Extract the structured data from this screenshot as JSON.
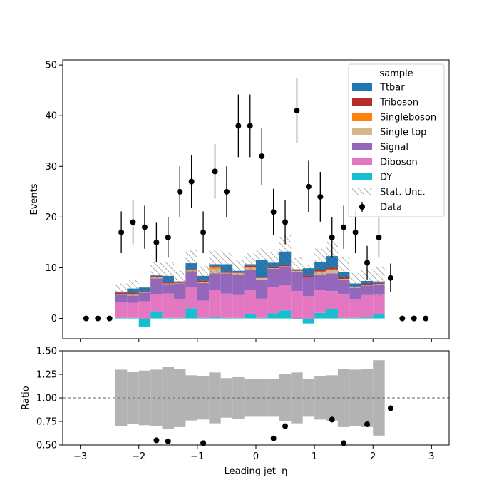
{
  "chart_data": {
    "type": "bar",
    "subtype": "stacked-histogram-with-ratio",
    "xlabel": "Leading jet  η",
    "ylabel": "Events",
    "ratio_ylabel": "Ratio",
    "xlim": [
      -3.3,
      3.3
    ],
    "ylim": [
      -4,
      51
    ],
    "ratio_ylim": [
      0.5,
      1.5
    ],
    "ratio_reference": 1.0,
    "x_ticks": [
      -3,
      -2,
      -1,
      0,
      1,
      2,
      3
    ],
    "y_ticks": [
      0,
      10,
      20,
      30,
      40,
      50
    ],
    "ratio_y_ticks": [
      0.5,
      0.75,
      1.0,
      1.25,
      1.5
    ],
    "ratio_y_tick_labels": [
      "0.50",
      "0.75",
      "1.00",
      "1.25",
      "1.50"
    ],
    "legend": {
      "title": "sample",
      "placement": "top-right",
      "entries": [
        "Ttbar",
        "Triboson",
        "Singleboson",
        "Single top",
        "Signal",
        "Diboson",
        "DY",
        "Stat. Unc.",
        "Data"
      ]
    },
    "bin_edges": [
      -2.4,
      -2.2,
      -2.0,
      -1.8,
      -1.6,
      -1.4,
      -1.2,
      -1.0,
      -0.8,
      -0.6,
      -0.4,
      -0.2,
      0.0,
      0.2,
      0.4,
      0.6,
      0.8,
      1.0,
      1.2,
      1.4,
      1.6,
      1.8,
      2.0,
      2.2
    ],
    "stack_order_bottom_to_top": [
      "DY",
      "Diboson",
      "Signal",
      "Single top",
      "Singleboson",
      "Triboson",
      "Ttbar"
    ],
    "series": [
      {
        "name": "DY",
        "color": "#17becf",
        "values": [
          0.1,
          0.1,
          -1.6,
          1.4,
          0.1,
          0.1,
          2.0,
          0.1,
          0.2,
          0.1,
          0.1,
          0.8,
          0.1,
          1.0,
          1.6,
          -0.2,
          -1.0,
          1.1,
          1.8,
          0.1,
          0.1,
          0.2,
          0.9
        ]
      },
      {
        "name": "Diboson",
        "color": "#e377c2",
        "values": [
          3.2,
          3.0,
          3.4,
          3.4,
          4.8,
          3.7,
          4.2,
          3.4,
          5.5,
          4.8,
          4.5,
          4.8,
          3.8,
          5.2,
          4.9,
          5.4,
          4.4,
          4.5,
          3.6,
          4.6,
          3.7,
          4.4,
          3.9
        ]
      },
      {
        "name": "Signal",
        "color": "#9467bd",
        "values": [
          1.4,
          1.4,
          1.7,
          3.1,
          1.9,
          3.1,
          3.1,
          3.5,
          3.2,
          4.0,
          4.1,
          4.0,
          3.8,
          3.6,
          3.7,
          3.8,
          3.7,
          3.0,
          3.5,
          3.0,
          2.2,
          1.9,
          1.9
        ]
      },
      {
        "name": "Single top",
        "color": "#d6b58b",
        "values": [
          0.1,
          0.1,
          0.1,
          0.2,
          0.1,
          0.1,
          0.1,
          0.2,
          0.9,
          0.1,
          0.3,
          0.4,
          0.3,
          0.1,
          0.1,
          0.2,
          0.1,
          0.6,
          0.6,
          0.1,
          0.1,
          0.1,
          0.1
        ]
      },
      {
        "name": "Singleboson",
        "color": "#ff7f0e",
        "values": [
          0.0,
          0.1,
          0.0,
          0.0,
          0.0,
          0.0,
          0.1,
          0.0,
          0.3,
          0.0,
          0.0,
          0.1,
          0.0,
          0.0,
          0.0,
          0.0,
          0.0,
          0.1,
          0.2,
          0.0,
          0.0,
          0.0,
          0.0
        ]
      },
      {
        "name": "Triboson",
        "color": "#b22d2d",
        "values": [
          0.3,
          0.3,
          0.2,
          0.3,
          0.2,
          0.3,
          0.2,
          0.3,
          0.2,
          0.3,
          0.2,
          0.3,
          0.2,
          0.3,
          0.3,
          0.2,
          0.3,
          0.3,
          0.3,
          0.3,
          0.2,
          0.3,
          0.2
        ]
      },
      {
        "name": "Ttbar",
        "color": "#1f77b4",
        "values": [
          0.2,
          0.9,
          0.7,
          0.1,
          1.3,
          0.0,
          1.2,
          0.9,
          0.4,
          1.4,
          0.2,
          0.3,
          3.3,
          0.8,
          2.6,
          0.1,
          1.4,
          1.6,
          2.3,
          1.1,
          0.6,
          0.5,
          0.3
        ]
      }
    ],
    "stat_unc": {
      "name": "Stat. Unc.",
      "relative": [
        0.3,
        0.28,
        0.29,
        0.3,
        0.33,
        0.31,
        0.24,
        0.23,
        0.27,
        0.21,
        0.22,
        0.2,
        0.2,
        0.2,
        0.25,
        0.27,
        0.2,
        0.23,
        0.24,
        0.31,
        0.3,
        0.31,
        0.4
      ]
    },
    "data": {
      "name": "Data",
      "x": [
        -2.9,
        -2.7,
        -2.5,
        -2.3,
        -2.1,
        -1.9,
        -1.7,
        -1.5,
        -1.3,
        -1.1,
        -0.9,
        -0.7,
        -0.5,
        -0.3,
        -0.1,
        0.1,
        0.3,
        0.5,
        0.7,
        0.9,
        1.1,
        1.3,
        1.5,
        1.7,
        1.9,
        2.1,
        2.3,
        2.5,
        2.7,
        2.9
      ],
      "y": [
        0,
        0,
        0,
        17,
        19,
        18,
        15,
        16,
        25,
        27,
        17,
        29,
        25,
        38,
        38,
        32,
        21,
        19,
        41,
        26,
        24,
        16,
        18,
        17,
        11,
        16,
        8,
        0,
        0,
        0
      ]
    },
    "ratio_points": {
      "x": [
        -1.7,
        -1.5,
        -0.9,
        0.3,
        0.5,
        1.3,
        1.5,
        1.9,
        2.3
      ],
      "y": [
        0.55,
        0.54,
        0.52,
        0.57,
        0.7,
        0.77,
        0.52,
        0.72,
        0.89
      ]
    }
  }
}
